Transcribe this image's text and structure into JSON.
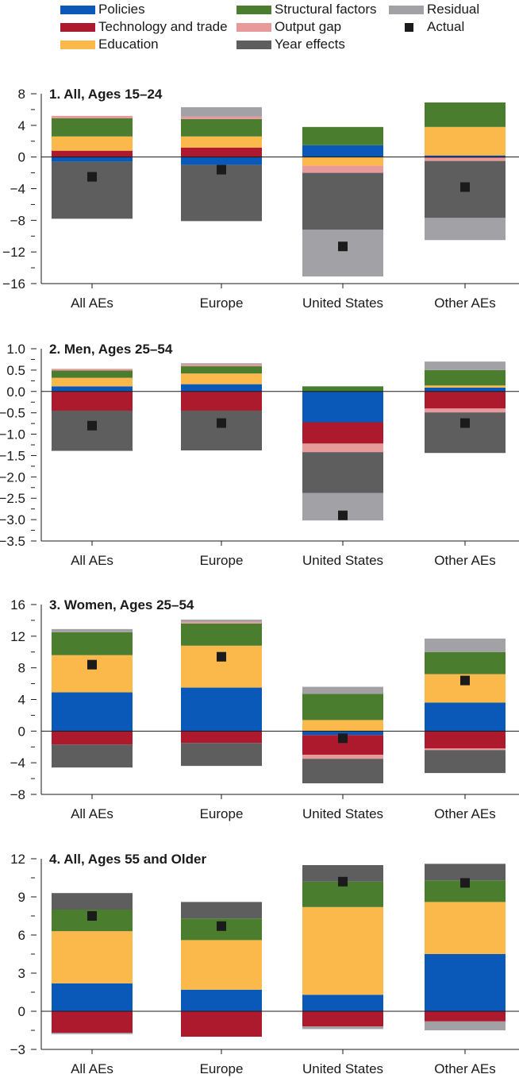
{
  "colors": {
    "Policies": "#0a58b8",
    "Technology and trade": "#ad1a2e",
    "Education": "#fab94a",
    "Structural factors": "#4b7d2e",
    "Output gap": "#e89a9a",
    "Year effects": "#5e5e5e",
    "Residual": "#a2a2a6",
    "Actual": "#1b1b1b"
  },
  "legend": {
    "items": [
      {
        "label": "Policies",
        "key": "Policies",
        "kind": "bar"
      },
      {
        "label": "Technology and trade",
        "key": "Technology and trade",
        "kind": "bar"
      },
      {
        "label": "Education",
        "key": "Education",
        "kind": "bar"
      },
      {
        "label": "Structural factors",
        "key": "Structural factors",
        "kind": "bar"
      },
      {
        "label": "Output gap",
        "key": "Output gap",
        "kind": "bar"
      },
      {
        "label": "Year effects",
        "key": "Year effects",
        "kind": "bar"
      },
      {
        "label": "Residual",
        "key": "Residual",
        "kind": "bar"
      },
      {
        "label": "Actual",
        "key": "Actual",
        "kind": "marker"
      }
    ]
  },
  "chart_data": [
    {
      "type": "bar",
      "stacked": true,
      "title": "1. All, Ages 15–24",
      "categories": [
        "All AEs",
        "Europe",
        "United States",
        "Other AEs"
      ],
      "ylim": [
        -16,
        8
      ],
      "yticks": [
        -16,
        -12,
        -8,
        -4,
        0,
        4,
        8
      ],
      "series": [
        {
          "name": "Policies",
          "values": [
            -0.6,
            -1.0,
            1.5,
            0.2
          ]
        },
        {
          "name": "Technology and trade",
          "values": [
            0.8,
            1.2,
            0.0,
            -0.1
          ]
        },
        {
          "name": "Education",
          "values": [
            1.8,
            1.4,
            -1.1,
            3.6
          ]
        },
        {
          "name": "Structural factors",
          "values": [
            2.3,
            2.2,
            2.3,
            3.1
          ]
        },
        {
          "name": "Output gap",
          "values": [
            0.3,
            0.3,
            -0.9,
            -0.4
          ]
        },
        {
          "name": "Year effects",
          "values": [
            -7.2,
            -7.1,
            -7.2,
            -7.2
          ]
        },
        {
          "name": "Residual",
          "values": [
            0.0,
            1.2,
            -5.9,
            -2.8
          ]
        }
      ],
      "actual": [
        -2.5,
        -1.6,
        -11.3,
        -3.8
      ]
    },
    {
      "type": "bar",
      "stacked": true,
      "title": "2. Men, Ages 25–54",
      "categories": [
        "All AEs",
        "Europe",
        "United States",
        "Other AEs"
      ],
      "ylim": [
        -3.5,
        1.0
      ],
      "yticks": [
        -3.5,
        -3.0,
        -2.5,
        -2.0,
        -1.5,
        -1.0,
        -0.5,
        0.0,
        0.5,
        1.0
      ],
      "series": [
        {
          "name": "Policies",
          "values": [
            0.12,
            0.17,
            -0.72,
            0.09
          ]
        },
        {
          "name": "Technology and trade",
          "values": [
            -0.45,
            -0.45,
            -0.5,
            -0.4
          ]
        },
        {
          "name": "Education",
          "values": [
            0.2,
            0.25,
            0.0,
            0.05
          ]
        },
        {
          "name": "Structural factors",
          "values": [
            0.17,
            0.17,
            0.12,
            0.36
          ]
        },
        {
          "name": "Output gap",
          "values": [
            0.04,
            0.04,
            -0.2,
            -0.09
          ]
        },
        {
          "name": "Year effects",
          "values": [
            -0.94,
            -0.93,
            -0.96,
            -0.95
          ]
        },
        {
          "name": "Residual",
          "values": [
            0.0,
            0.03,
            -0.64,
            0.2
          ]
        }
      ],
      "actual": [
        -0.8,
        -0.74,
        -2.9,
        -0.74
      ]
    },
    {
      "type": "bar",
      "stacked": true,
      "title": "3. Women, Ages 25–54",
      "categories": [
        "All AEs",
        "Europe",
        "United States",
        "Other AEs"
      ],
      "ylim": [
        -8,
        16
      ],
      "yticks": [
        -8,
        -4,
        0,
        4,
        8,
        12,
        16
      ],
      "series": [
        {
          "name": "Policies",
          "values": [
            4.9,
            5.5,
            -0.5,
            3.6
          ]
        },
        {
          "name": "Technology and trade",
          "values": [
            -1.7,
            -1.5,
            -2.5,
            -2.2
          ]
        },
        {
          "name": "Education",
          "values": [
            4.7,
            5.3,
            1.4,
            3.6
          ]
        },
        {
          "name": "Structural factors",
          "values": [
            2.9,
            2.8,
            3.3,
            2.8
          ]
        },
        {
          "name": "Output gap",
          "values": [
            0.0,
            0.2,
            -0.5,
            -0.2
          ]
        },
        {
          "name": "Year effects",
          "values": [
            -2.9,
            -2.9,
            -3.1,
            -2.9
          ]
        },
        {
          "name": "Residual",
          "values": [
            0.4,
            0.3,
            0.9,
            1.7
          ]
        }
      ],
      "actual": [
        8.4,
        9.4,
        -0.9,
        6.4
      ]
    },
    {
      "type": "bar",
      "stacked": true,
      "title": "4. All, Ages 55 and Older",
      "categories": [
        "All AEs",
        "Europe",
        "United States",
        "Other AEs"
      ],
      "ylim": [
        -3,
        12
      ],
      "yticks": [
        -3,
        0,
        3,
        6,
        9,
        12
      ],
      "series": [
        {
          "name": "Policies",
          "values": [
            2.2,
            1.7,
            1.3,
            4.5
          ]
        },
        {
          "name": "Technology and trade",
          "values": [
            -1.7,
            -2.0,
            -1.2,
            -0.8
          ]
        },
        {
          "name": "Education",
          "values": [
            4.1,
            3.9,
            6.9,
            4.1
          ]
        },
        {
          "name": "Structural factors",
          "values": [
            1.7,
            1.7,
            2.0,
            1.7
          ]
        },
        {
          "name": "Output gap",
          "values": [
            0.0,
            0.0,
            0.0,
            0.0
          ]
        },
        {
          "name": "Year effects",
          "values": [
            1.3,
            1.3,
            1.3,
            1.3
          ]
        },
        {
          "name": "Residual",
          "values": [
            -0.1,
            0.0,
            -0.2,
            -0.7
          ]
        }
      ],
      "actual": [
        7.5,
        6.7,
        10.2,
        10.1
      ]
    }
  ]
}
